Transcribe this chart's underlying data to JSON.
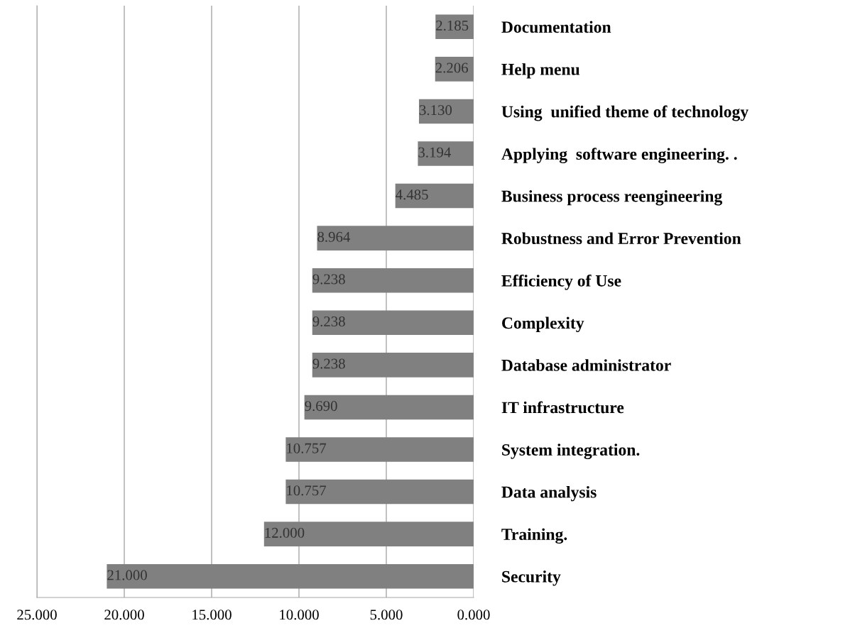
{
  "chart_data": {
    "type": "bar",
    "orientation": "horizontal",
    "categories": [
      "Documentation",
      "Help menu",
      "Using  unified theme of technology",
      "Applying  software engineering. .",
      "Business process reengineering",
      "Robustness and Error Prevention",
      "Efficiency of Use",
      "Complexity",
      "Database administrator",
      "IT infrastructure",
      "System integration.",
      "Data analysis",
      "Training.",
      "Security"
    ],
    "values": [
      2.185,
      2.206,
      3.13,
      3.194,
      4.485,
      8.964,
      9.238,
      9.238,
      9.238,
      9.69,
      10.757,
      10.757,
      12.0,
      21.0
    ],
    "value_labels": [
      "2.185",
      "2.206",
      "3.130",
      "3.194",
      "4.485",
      "8.964",
      "9.238",
      "9.238",
      "9.238",
      "9.690",
      "10.757",
      "10.757",
      "12.000",
      "21.000"
    ],
    "color": "#808080",
    "xlim": [
      25,
      0
    ],
    "xticks": [
      {
        "value": 25,
        "label": "25.000"
      },
      {
        "value": 20,
        "label": "20.000"
      },
      {
        "value": 15,
        "label": "15.000"
      },
      {
        "value": 10,
        "label": "10.000"
      },
      {
        "value": 5,
        "label": "5.000"
      },
      {
        "value": 0,
        "label": "0.000"
      }
    ],
    "grid": "x"
  }
}
